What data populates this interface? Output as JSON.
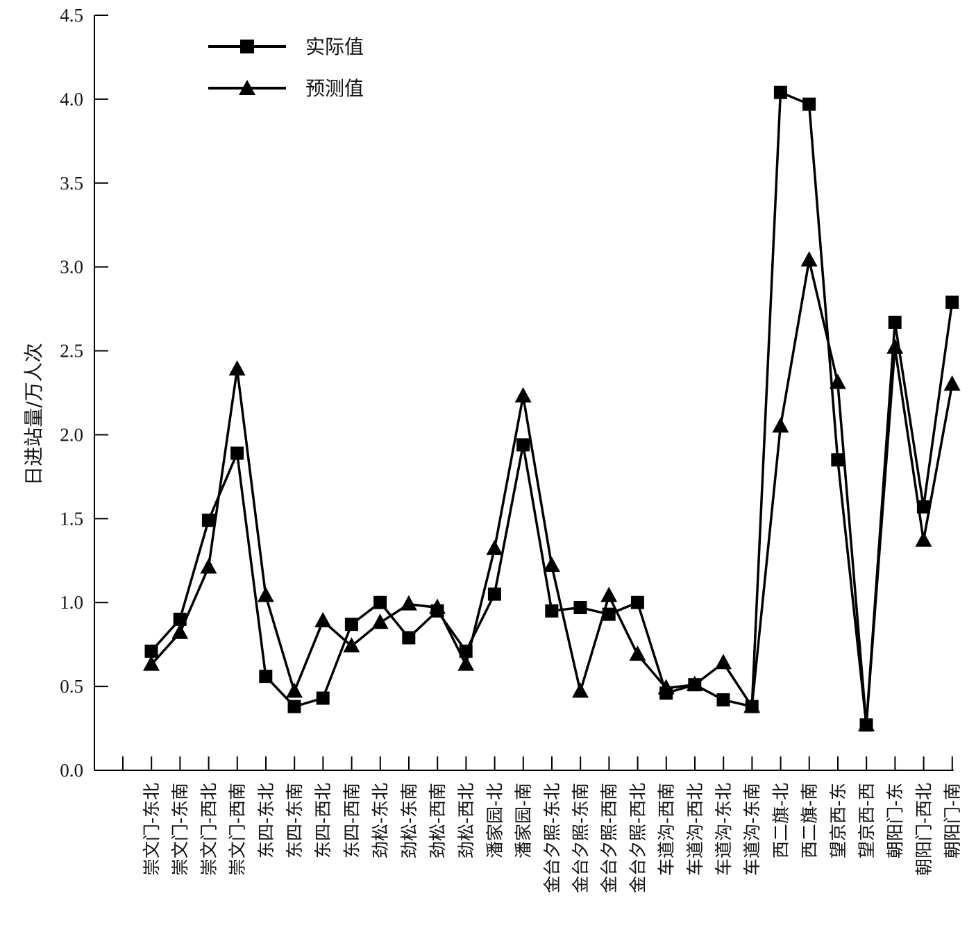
{
  "chart_data": {
    "type": "line",
    "title": "",
    "xlabel": "",
    "ylabel": "日进站量/万人次",
    "ylim": [
      0,
      4.5
    ],
    "yticks": [
      "0.0",
      "0.5",
      "1.0",
      "1.5",
      "2.0",
      "2.5",
      "3.0",
      "3.5",
      "4.0",
      "4.5"
    ],
    "grid": false,
    "legend_position": "top-left",
    "categories": [
      "崇文门-东北",
      "崇文门-东南",
      "崇文门-西北",
      "崇文门-西南",
      "东四-东北",
      "东四-东南",
      "东四-西北",
      "东四-西南",
      "劲松-东北",
      "劲松-东南",
      "劲松-西南",
      "劲松-西北",
      "潘家园-北",
      "潘家园-南",
      "金台夕照-东北",
      "金台夕照-东南",
      "金台夕照-西南",
      "金台夕照-西北",
      "车道沟-西南",
      "车道沟-西北",
      "车道沟-东北",
      "车道沟-东南",
      "西二旗-北",
      "西二旗-南",
      "望京西-东",
      "望京西-西",
      "朝阳门-东",
      "朝阳门-西北",
      "朝阳门-南"
    ],
    "series": [
      {
        "name": "实际值",
        "marker": "square",
        "color": "#000000",
        "values": [
          0.71,
          0.9,
          1.49,
          1.89,
          0.56,
          0.38,
          0.43,
          0.87,
          1.0,
          0.79,
          0.95,
          0.71,
          1.05,
          1.94,
          0.95,
          0.97,
          0.93,
          1.0,
          0.46,
          0.51,
          0.42,
          0.38,
          4.04,
          3.97,
          1.85,
          0.27,
          2.67,
          1.57,
          2.79
        ]
      },
      {
        "name": "预测值",
        "marker": "triangle",
        "color": "#000000",
        "values": [
          0.63,
          0.82,
          1.21,
          2.39,
          1.04,
          0.47,
          0.89,
          0.74,
          0.88,
          0.99,
          0.97,
          0.63,
          1.32,
          2.23,
          1.22,
          0.47,
          1.04,
          0.69,
          0.49,
          0.51,
          0.64,
          0.38,
          2.05,
          3.04,
          2.31,
          0.27,
          2.52,
          1.37,
          2.3
        ]
      }
    ]
  }
}
